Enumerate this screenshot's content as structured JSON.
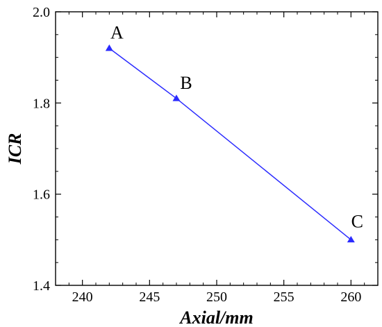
{
  "chart_data": {
    "type": "line",
    "xlabel": "Axial/mm",
    "ylabel": "ICR",
    "xlim": [
      238,
      262
    ],
    "ylim": [
      1.4,
      2.0
    ],
    "x_ticks": [
      240,
      245,
      250,
      255,
      260
    ],
    "y_ticks": [
      1.4,
      1.6,
      1.8,
      2.0
    ],
    "x_tick_labels": [
      "240",
      "245",
      "250",
      "255",
      "260"
    ],
    "y_tick_labels": [
      "1.4",
      "1.6",
      "1.8",
      "2.0"
    ],
    "grid": false,
    "series": [
      {
        "color": "#2b2bff",
        "marker": "triangle",
        "points": [
          {
            "x": 242,
            "y": 1.92,
            "label": "A"
          },
          {
            "x": 247,
            "y": 1.81,
            "label": "B"
          },
          {
            "x": 260,
            "y": 1.5,
            "label": "C"
          }
        ]
      }
    ]
  }
}
